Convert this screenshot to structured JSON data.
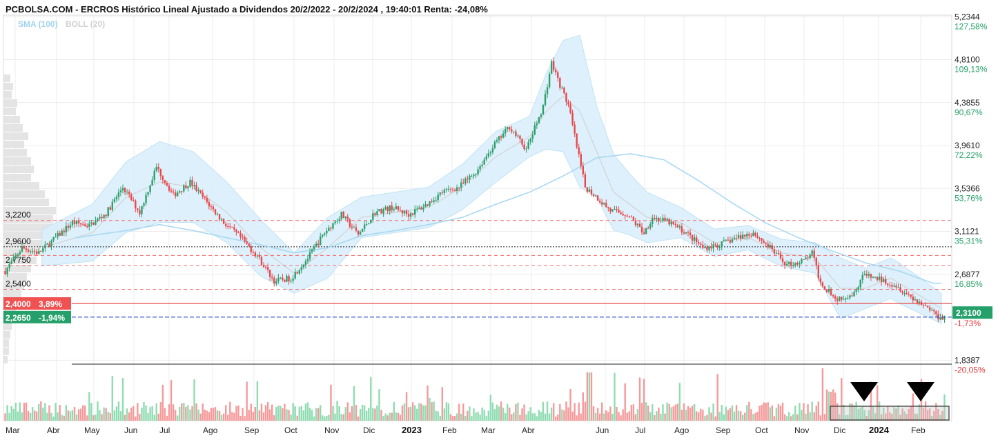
{
  "chart_data": {
    "type": "candlestick",
    "title": "PCBOLSA.COM - ERCROS Histórico Lineal Ajustado a Dividendos 20/2/2022 - 20/2/2024 , 19:40:01 Renta: -24,08%",
    "legend": [
      {
        "label": "SMA (100)",
        "color": "#9fd3ef"
      },
      {
        "label": "BOLL (20)",
        "color": "#d0d0d0"
      }
    ],
    "y_range": [
      1.8,
      5.25
    ],
    "right_axis_ticks": [
      {
        "value": 5.2344,
        "label": "5,2344",
        "pct": "127,58%"
      },
      {
        "value": 4.81,
        "label": "4,8100",
        "pct": "109,13%"
      },
      {
        "value": 4.3855,
        "label": "4,3855",
        "pct": "90,67%"
      },
      {
        "value": 3.961,
        "label": "3,9610",
        "pct": "72,22%"
      },
      {
        "value": 3.5366,
        "label": "3,5366",
        "pct": "53,76%"
      },
      {
        "value": 3.1121,
        "label": "3,1121",
        "pct": "35,31%"
      },
      {
        "value": 2.6877,
        "label": "2,6877",
        "pct": "16,85%"
      },
      {
        "value": 1.8387,
        "label": "1,8387",
        "pct": "-20,05%"
      }
    ],
    "current_price": {
      "value": 2.31,
      "label": "2,3100",
      "pct": "-1,73%"
    },
    "levels": [
      {
        "value": 3.22,
        "label": "3,2200",
        "style": "red-dashed"
      },
      {
        "value": 2.96,
        "label": "2,9600",
        "style": "black-dotted"
      },
      {
        "value": 2.775,
        "label": "2,7750",
        "style": "red-dashed"
      },
      {
        "value": 2.54,
        "label": "2,5400",
        "style": "red-dashed"
      }
    ],
    "extra_dashed_levels": [
      2.875
    ],
    "price_boxes": [
      {
        "value": 2.4,
        "label": "2,4000",
        "pct": "3,89%",
        "color": "#f05151"
      },
      {
        "value": 2.265,
        "label": "2,2650",
        "pct": "-1,94%",
        "color": "#26a06b"
      }
    ],
    "months": [
      "Mar",
      "Abr",
      "May",
      "Jun",
      "Jul",
      "Ago",
      "Sep",
      "Oct",
      "Nov",
      "Dic",
      "2023",
      "Feb",
      "Mar",
      "Abr",
      "Jun",
      "Jul",
      "Ago",
      "Sep",
      "Oct",
      "Nov",
      "Dic",
      "2024",
      "Feb"
    ],
    "price_path": [
      [
        0,
        2.72
      ],
      [
        2,
        2.95
      ],
      [
        4,
        2.9
      ],
      [
        6,
        3.05
      ],
      [
        8,
        3.2
      ],
      [
        10,
        3.17
      ],
      [
        12,
        3.29
      ],
      [
        14,
        3.55
      ],
      [
        16,
        3.3
      ],
      [
        18,
        3.75
      ],
      [
        20,
        3.47
      ],
      [
        22,
        3.6
      ],
      [
        24,
        3.4
      ],
      [
        26,
        3.2
      ],
      [
        28,
        3.05
      ],
      [
        30,
        2.87
      ],
      [
        32,
        2.62
      ],
      [
        34,
        2.65
      ],
      [
        36,
        2.85
      ],
      [
        38,
        3.1
      ],
      [
        40,
        3.28
      ],
      [
        42,
        3.08
      ],
      [
        44,
        3.3
      ],
      [
        46,
        3.35
      ],
      [
        48,
        3.28
      ],
      [
        50,
        3.37
      ],
      [
        52,
        3.5
      ],
      [
        54,
        3.55
      ],
      [
        56,
        3.7
      ],
      [
        58,
        3.95
      ],
      [
        60,
        4.15
      ],
      [
        62,
        3.92
      ],
      [
        64,
        4.35
      ],
      [
        65,
        4.78
      ],
      [
        66,
        4.56
      ],
      [
        67,
        4.36
      ],
      [
        68,
        3.95
      ],
      [
        69,
        3.55
      ],
      [
        70,
        3.48
      ],
      [
        72,
        3.32
      ],
      [
        74,
        3.28
      ],
      [
        76,
        3.1
      ],
      [
        77,
        3.25
      ],
      [
        79,
        3.2
      ],
      [
        81,
        3.1
      ],
      [
        83,
        2.95
      ],
      [
        85,
        2.98
      ],
      [
        87,
        3.05
      ],
      [
        89,
        3.1
      ],
      [
        91,
        2.95
      ],
      [
        93,
        2.78
      ],
      [
        95,
        2.82
      ],
      [
        96,
        2.9
      ],
      [
        97,
        2.6
      ],
      [
        99,
        2.45
      ],
      [
        101,
        2.5
      ],
      [
        102,
        2.68
      ],
      [
        104,
        2.64
      ],
      [
        106,
        2.58
      ],
      [
        108,
        2.45
      ],
      [
        110,
        2.35
      ],
      [
        111,
        2.27
      ]
    ],
    "sma100_path": [
      [
        8,
        3.05
      ],
      [
        14,
        3.12
      ],
      [
        18,
        3.18
      ],
      [
        22,
        3.12
      ],
      [
        26,
        3.05
      ],
      [
        30,
        2.98
      ],
      [
        34,
        2.9
      ],
      [
        38,
        2.95
      ],
      [
        42,
        3.07
      ],
      [
        46,
        3.12
      ],
      [
        50,
        3.18
      ],
      [
        54,
        3.25
      ],
      [
        58,
        3.38
      ],
      [
        62,
        3.5
      ],
      [
        66,
        3.66
      ],
      [
        70,
        3.84
      ],
      [
        74,
        3.88
      ],
      [
        78,
        3.82
      ],
      [
        82,
        3.62
      ],
      [
        86,
        3.4
      ],
      [
        90,
        3.2
      ],
      [
        94,
        3.05
      ],
      [
        98,
        2.92
      ],
      [
        102,
        2.8
      ],
      [
        106,
        2.72
      ],
      [
        110,
        2.6
      ]
    ],
    "boll_mid_path": [
      [
        4,
        2.95
      ],
      [
        10,
        3.1
      ],
      [
        14,
        3.45
      ],
      [
        18,
        3.6
      ],
      [
        22,
        3.55
      ],
      [
        26,
        3.3
      ],
      [
        30,
        2.95
      ],
      [
        34,
        2.7
      ],
      [
        38,
        2.95
      ],
      [
        42,
        3.25
      ],
      [
        46,
        3.3
      ],
      [
        50,
        3.35
      ],
      [
        54,
        3.55
      ],
      [
        58,
        3.85
      ],
      [
        62,
        4.05
      ],
      [
        64,
        4.3
      ],
      [
        66,
        4.45
      ],
      [
        68,
        4.3
      ],
      [
        70,
        3.9
      ],
      [
        72,
        3.5
      ],
      [
        76,
        3.25
      ],
      [
        80,
        3.2
      ],
      [
        84,
        3.0
      ],
      [
        88,
        3.05
      ],
      [
        92,
        2.9
      ],
      [
        96,
        2.85
      ],
      [
        99,
        2.55
      ],
      [
        102,
        2.55
      ],
      [
        105,
        2.65
      ],
      [
        108,
        2.5
      ],
      [
        111,
        2.35
      ]
    ],
    "boll_width_path": [
      [
        4,
        0.18
      ],
      [
        14,
        0.35
      ],
      [
        18,
        0.4
      ],
      [
        26,
        0.3
      ],
      [
        30,
        0.28
      ],
      [
        34,
        0.2
      ],
      [
        38,
        0.3
      ],
      [
        42,
        0.2
      ],
      [
        50,
        0.2
      ],
      [
        58,
        0.25
      ],
      [
        62,
        0.2
      ],
      [
        66,
        0.55
      ],
      [
        68,
        0.75
      ],
      [
        70,
        0.45
      ],
      [
        74,
        0.3
      ],
      [
        80,
        0.15
      ],
      [
        88,
        0.12
      ],
      [
        96,
        0.15
      ],
      [
        99,
        0.3
      ],
      [
        102,
        0.2
      ],
      [
        106,
        0.2
      ],
      [
        111,
        0.15
      ]
    ],
    "arrow_markers": 2,
    "volume_profile": true,
    "grid": true
  }
}
